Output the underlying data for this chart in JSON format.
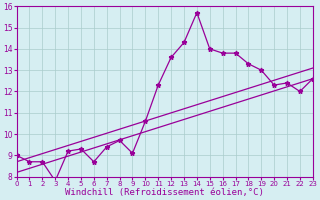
{
  "xlabel": "Windchill (Refroidissement éolien,°C)",
  "x_data": [
    0,
    1,
    2,
    3,
    4,
    5,
    6,
    7,
    8,
    9,
    10,
    11,
    12,
    13,
    14,
    15,
    16,
    17,
    18,
    19,
    20,
    21,
    22,
    23
  ],
  "y_main": [
    9.0,
    8.7,
    8.7,
    7.8,
    9.2,
    9.3,
    8.7,
    9.4,
    9.7,
    9.1,
    10.6,
    12.3,
    13.6,
    14.3,
    15.7,
    14.0,
    13.8,
    13.8,
    13.3,
    13.0,
    12.3,
    12.4,
    12.0,
    12.6
  ],
  "y_line1_start": 8.2,
  "y_line1_end": 12.6,
  "y_line2_start": 8.7,
  "y_line2_end": 13.1,
  "ylim": [
    8,
    16
  ],
  "xlim": [
    0,
    23
  ],
  "yticks": [
    8,
    9,
    10,
    11,
    12,
    13,
    14,
    15,
    16
  ],
  "xticks": [
    0,
    1,
    2,
    3,
    4,
    5,
    6,
    7,
    8,
    9,
    10,
    11,
    12,
    13,
    14,
    15,
    16,
    17,
    18,
    19,
    20,
    21,
    22,
    23
  ],
  "line_color": "#990099",
  "bg_color": "#d6eef2",
  "grid_color": "#aacccc",
  "tick_label_fontsize": 5.5,
  "xlabel_fontsize": 6.5
}
